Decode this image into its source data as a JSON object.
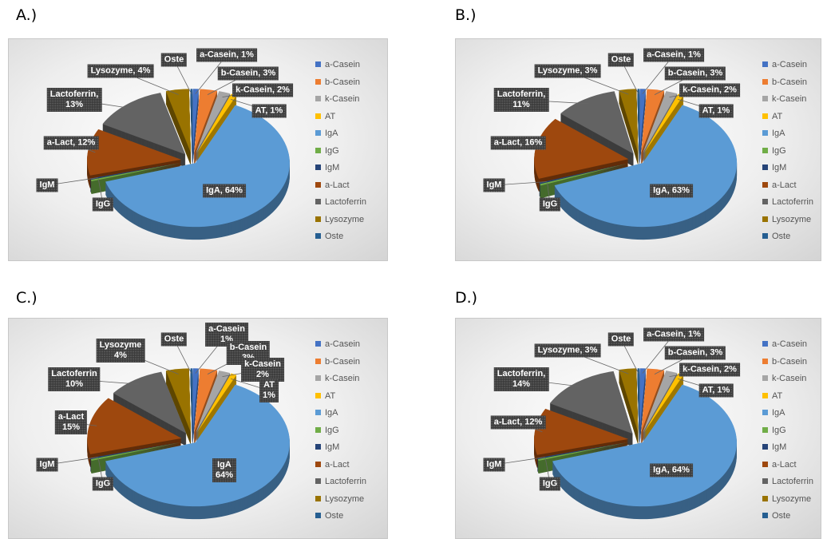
{
  "chart_data": [
    {
      "type": "pie",
      "label": "A.)",
      "categories": [
        "a-Casein",
        "b-Casein",
        "k-Casein",
        "AT",
        "IgA",
        "IgG",
        "IgM",
        "a-Lact",
        "Lactoferrin",
        "Lysozyme",
        "Oste"
      ],
      "values": [
        1,
        3,
        2,
        1,
        64,
        0.4,
        0.3,
        12,
        13,
        4,
        0.3
      ],
      "value_labels": [
        "a-Casein, 1%",
        "b-Casein, 3%",
        "k-Casein, 2%",
        "AT, 1%",
        "IgA, 64%",
        "IgG",
        "IgM",
        "a-Lact, 12%",
        "Lactoferrin,\n13%",
        "Lysozyme, 4%",
        "Oste"
      ],
      "colors": [
        "#4472c4",
        "#ed7d31",
        "#a5a5a5",
        "#ffc000",
        "#5b9bd5",
        "#70ad47",
        "#264478",
        "#9e480e",
        "#636363",
        "#997300",
        "#255e91"
      ]
    },
    {
      "type": "pie",
      "label": "B.)",
      "categories": [
        "a-Casein",
        "b-Casein",
        "k-Casein",
        "AT",
        "IgA",
        "IgG",
        "IgM",
        "a-Lact",
        "Lactoferrin",
        "Lysozyme",
        "Oste"
      ],
      "values": [
        1,
        3,
        2,
        1,
        63,
        0.4,
        0.3,
        16,
        11,
        3,
        0.3
      ],
      "value_labels": [
        "a-Casein, 1%",
        "b-Casein, 3%",
        "k-Casein, 2%",
        "AT, 1%",
        "IgA, 63%",
        "IgG",
        "IgM",
        "a-Lact, 16%",
        "Lactoferrin,\n11%",
        "Lysozyme, 3%",
        "Oste"
      ],
      "colors": [
        "#4472c4",
        "#ed7d31",
        "#a5a5a5",
        "#ffc000",
        "#5b9bd5",
        "#70ad47",
        "#264478",
        "#9e480e",
        "#636363",
        "#997300",
        "#255e91"
      ]
    },
    {
      "type": "pie",
      "label": "C.)",
      "categories": [
        "a-Casein",
        "b-Casein",
        "k-Casein",
        "AT",
        "IgA",
        "IgG",
        "IgM",
        "a-Lact",
        "Lactoferrin",
        "Lysozyme",
        "Oste"
      ],
      "values": [
        1,
        3,
        2,
        1,
        64,
        0.4,
        0.3,
        15,
        10,
        4,
        0.3
      ],
      "value_labels": [
        "a-Casein\n1%",
        "b-Casein\n3%",
        "k-Casein\n2%",
        "AT\n1%",
        "IgA\n64%",
        "IgG",
        "IgM",
        "a-Lact\n15%",
        "Lactoferrin\n10%",
        "Lysozyme\n4%",
        "Oste"
      ],
      "colors": [
        "#4472c4",
        "#ed7d31",
        "#a5a5a5",
        "#ffc000",
        "#5b9bd5",
        "#70ad47",
        "#264478",
        "#9e480e",
        "#636363",
        "#997300",
        "#255e91"
      ]
    },
    {
      "type": "pie",
      "label": "D.)",
      "categories": [
        "a-Casein",
        "b-Casein",
        "k-Casein",
        "AT",
        "IgA",
        "IgG",
        "IgM",
        "a-Lact",
        "Lactoferrin",
        "Lysozyme",
        "Oste"
      ],
      "values": [
        1,
        3,
        2,
        1,
        64,
        0.4,
        0.3,
        12,
        14,
        3,
        0.3
      ],
      "value_labels": [
        "a-Casein, 1%",
        "b-Casein, 3%",
        "k-Casein, 2%",
        "AT, 1%",
        "IgA, 64%",
        "IgG",
        "IgM",
        "a-Lact, 12%",
        "Lactoferrin,\n14%",
        "Lysozyme, 3%",
        "Oste"
      ],
      "colors": [
        "#4472c4",
        "#ed7d31",
        "#a5a5a5",
        "#ffc000",
        "#5b9bd5",
        "#70ad47",
        "#264478",
        "#9e480e",
        "#636363",
        "#997300",
        "#255e91"
      ]
    }
  ]
}
